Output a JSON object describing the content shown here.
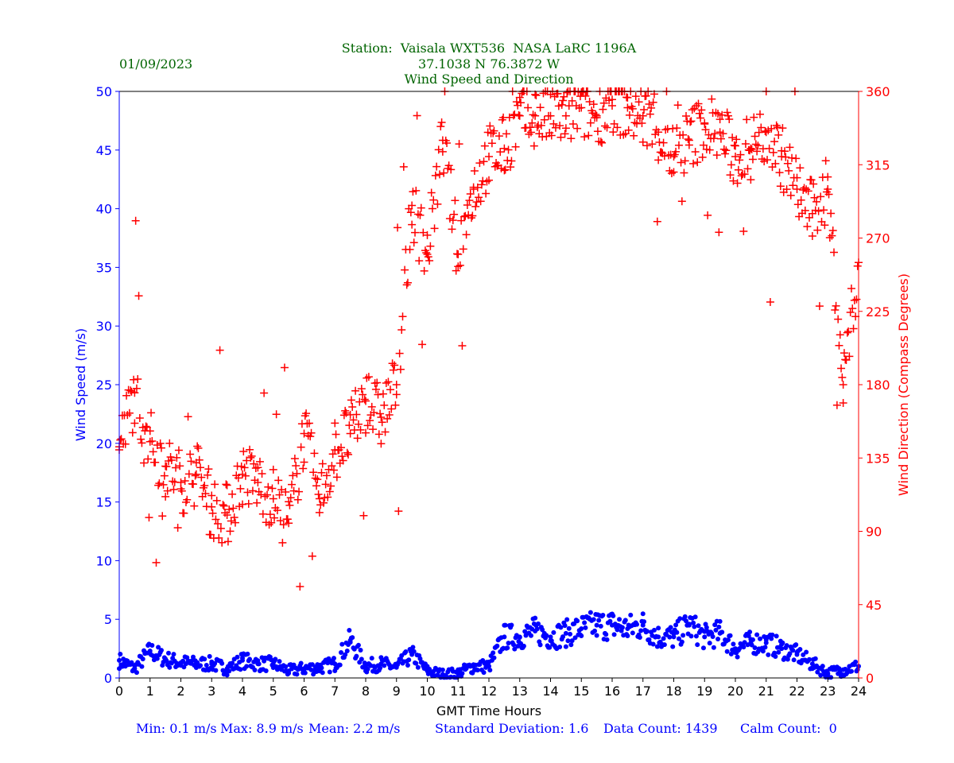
{
  "chart_data": {
    "type": "scatter",
    "date": "01/09/2023",
    "title_lines": [
      "Station:  Vaisala WXT536  NASA LaRC 1196A",
      "37.1038 N 76.3872 W",
      "Wind Speed and Direction"
    ],
    "xlabel": "GMT Time Hours",
    "ylabel_left": "Wind Speed (m/s)",
    "ylabel_right": "Wind Direction (Compass Degrees)",
    "xlim": [
      0,
      24
    ],
    "ylim_left": [
      0,
      50
    ],
    "ylim_right": [
      0,
      360
    ],
    "x_ticks": [
      "0",
      "1",
      "2",
      "3",
      "4",
      "5",
      "6",
      "7",
      "8",
      "9",
      "10",
      "11",
      "12",
      "13",
      "14",
      "15",
      "16",
      "17",
      "18",
      "19",
      "20",
      "21",
      "22",
      "23",
      "24"
    ],
    "y_left_ticks": [
      "0",
      "5",
      "10",
      "15",
      "20",
      "25",
      "30",
      "35",
      "40",
      "45",
      "50"
    ],
    "y_right_ticks": [
      "0",
      "45",
      "90",
      "135",
      "180",
      "225",
      "270",
      "315",
      "360"
    ],
    "colors": {
      "speed": "#0000ff",
      "direction": "#ff0000",
      "title": "#006400"
    },
    "series": [
      {
        "name": "Wind Speed (m/s)",
        "axis": "left",
        "marker": "dot",
        "x": [
          0,
          0.5,
          1,
          1.5,
          2,
          2.5,
          3,
          3.5,
          4,
          4.5,
          5,
          5.5,
          6,
          6.5,
          7,
          7.5,
          8,
          8.5,
          9,
          9.5,
          10,
          10.5,
          11,
          11.5,
          12,
          12.5,
          13,
          13.5,
          14,
          14.5,
          15,
          15.5,
          16,
          16.5,
          17,
          17.5,
          18,
          18.5,
          19,
          19.5,
          20,
          20.5,
          21,
          21.5,
          22,
          22.5,
          23,
          23.5,
          24
        ],
        "values": [
          1.5,
          0.8,
          2.3,
          1.6,
          1.3,
          1.2,
          1.2,
          0.8,
          1.5,
          1.2,
          1.2,
          0.6,
          0.8,
          0.9,
          1.2,
          3.2,
          1.0,
          1.2,
          0.9,
          2.0,
          0.6,
          0.3,
          0.4,
          1.0,
          1.0,
          3.5,
          3.5,
          4.0,
          3.5,
          3.8,
          4.2,
          4.5,
          4.5,
          4.2,
          4.5,
          3.5,
          3.5,
          4.5,
          3.5,
          3.8,
          2.5,
          3.0,
          3.0,
          2.5,
          2.0,
          1.2,
          0.4,
          0.7,
          1.0
        ]
      },
      {
        "name": "Wind Direction (deg)",
        "axis": "right",
        "marker": "plus",
        "x": [
          0,
          0.5,
          1,
          1.5,
          2,
          2.5,
          3,
          3.5,
          4,
          4.5,
          5,
          5.5,
          6,
          6.5,
          7,
          7.5,
          8,
          8.5,
          9,
          9.5,
          10,
          10.5,
          11,
          11.5,
          12,
          12.5,
          13,
          13.5,
          14,
          14.5,
          15,
          15.5,
          16,
          16.5,
          17,
          17.5,
          18,
          18.5,
          19,
          19.5,
          20,
          20.5,
          21,
          21.5,
          22,
          22.5,
          23,
          23.5,
          24
        ],
        "values": [
          140,
          175,
          145,
          130,
          120,
          125,
          105,
          100,
          125,
          120,
          110,
          95,
          150,
          110,
          140,
          150,
          170,
          160,
          180,
          290,
          260,
          330,
          260,
          300,
          320,
          325,
          345,
          345,
          345,
          345,
          350,
          345,
          355,
          350,
          345,
          335,
          320,
          330,
          340,
          335,
          320,
          325,
          335,
          320,
          300,
          285,
          300,
          180,
          255
        ]
      }
    ],
    "footer": {
      "min": "Min: 0.1 m/s",
      "max": "Max: 8.9 m/s",
      "mean": "Mean: 2.2 m/s",
      "std": "Standard Deviation: 1.6",
      "count": "Data Count: 1439",
      "calm": "Calm Count:  0"
    }
  }
}
